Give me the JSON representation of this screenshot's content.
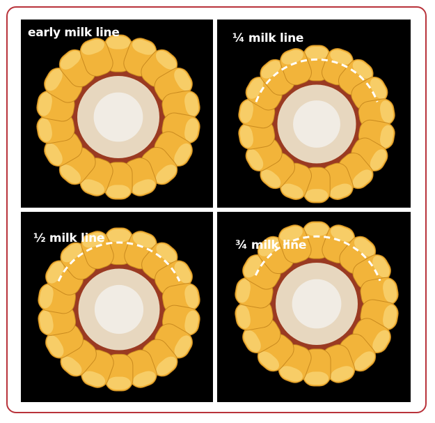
{
  "frame_color": "#b8323a",
  "panels": [
    {
      "label": "early milk line",
      "stage": "early"
    },
    {
      "label": "¼ milk line",
      "stage": "quarter"
    },
    {
      "label": "½ milk line",
      "stage": "half"
    },
    {
      "label": "¾ milk line",
      "stage": "three-quarter"
    }
  ],
  "colors": {
    "kernel": "#f2b43a",
    "kernel_tip": "#fad77a",
    "red_ring": "#9a3a22",
    "cob_center": "#f1ece4",
    "dash_line": "#ffffff"
  }
}
